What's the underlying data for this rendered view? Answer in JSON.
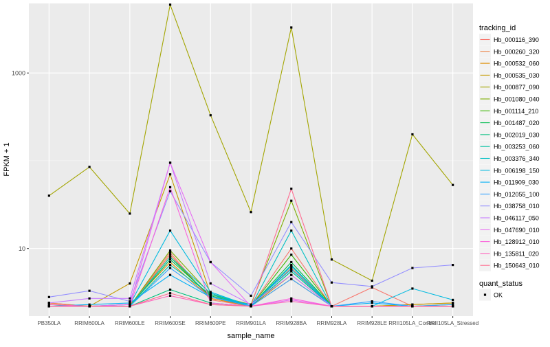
{
  "chart_data": {
    "type": "line",
    "x": [
      "PB350LA",
      "RRIM600LA",
      "RRIM600LE",
      "RRIM600SE",
      "RRIM600PE",
      "RRIM901LA",
      "RRIM928BA",
      "RRIM928LA",
      "RRIM928LE",
      "RRII105LA_Control",
      "RRII105LA_Stressed"
    ],
    "xlabel": "sample_name",
    "ylabel": "FPKM + 1",
    "yscale": "log10",
    "ylim": [
      1.7,
      6200
    ],
    "yticks": [
      10,
      1000
    ],
    "ytick_labels": [
      "10",
      "1000"
    ],
    "grid": true,
    "legend": {
      "placement": "right",
      "color_title": "tracking_id",
      "shape_title": "quant_status",
      "shape_items": [
        "OK"
      ]
    },
    "series": [
      {
        "name": "Hb_000116_390",
        "color": "#F8766D",
        "values": [
          2.4,
          2.2,
          2.2,
          9.0,
          2.6,
          2.2,
          10.0,
          2.2,
          3.6,
          2.2,
          2.2
        ]
      },
      {
        "name": "Hb_000260_320",
        "color": "#EE8043",
        "values": [
          2.4,
          2.2,
          2.2,
          8.5,
          2.7,
          2.2,
          6.0,
          2.2,
          2.2,
          2.2,
          2.2
        ]
      },
      {
        "name": "Hb_000532_060",
        "color": "#DE8C00",
        "values": [
          2.2,
          2.2,
          2.3,
          7.0,
          2.7,
          2.2,
          4.5,
          2.2,
          2.2,
          2.3,
          2.4
        ]
      },
      {
        "name": "Hb_000535_030",
        "color": "#C49A00",
        "values": [
          2.2,
          2.2,
          4.0,
          70.0,
          3.0,
          2.2,
          5.0,
          2.2,
          2.2,
          2.3,
          2.4
        ]
      },
      {
        "name": "Hb_000877_090",
        "color": "#A3A500",
        "values": [
          40.0,
          85.0,
          25.0,
          6000.0,
          330.0,
          26.0,
          3300.0,
          7.5,
          4.3,
          200.0,
          53.0
        ]
      },
      {
        "name": "Hb_001080_040",
        "color": "#7CAE00",
        "values": [
          2.3,
          2.2,
          2.2,
          9.5,
          3.0,
          2.3,
          35.0,
          2.2,
          2.2,
          2.2,
          2.3
        ]
      },
      {
        "name": "Hb_001114_210",
        "color": "#39B600",
        "values": [
          2.2,
          2.2,
          2.2,
          8.0,
          2.8,
          2.2,
          8.5,
          2.2,
          2.2,
          2.2,
          2.2
        ]
      },
      {
        "name": "Hb_001487_020",
        "color": "#00BB4E",
        "values": [
          2.2,
          2.2,
          2.2,
          7.5,
          2.9,
          2.2,
          7.0,
          2.2,
          2.2,
          2.2,
          2.2
        ]
      },
      {
        "name": "Hb_002019_030",
        "color": "#00BF7D",
        "values": [
          2.2,
          2.2,
          2.2,
          3.4,
          2.4,
          2.2,
          5.5,
          2.2,
          2.2,
          2.2,
          2.2
        ]
      },
      {
        "name": "Hb_003253_060",
        "color": "#00C1A3",
        "values": [
          2.2,
          2.2,
          2.2,
          6.5,
          3.0,
          2.2,
          6.5,
          2.2,
          2.2,
          2.2,
          2.2
        ]
      },
      {
        "name": "Hb_003376_340",
        "color": "#00BFC4",
        "values": [
          2.2,
          2.2,
          2.2,
          8.0,
          3.1,
          2.2,
          16.0,
          2.2,
          2.2,
          2.2,
          2.2
        ]
      },
      {
        "name": "Hb_006198_150",
        "color": "#00BAE0",
        "values": [
          2.2,
          2.2,
          2.3,
          16.0,
          3.2,
          2.2,
          6.3,
          2.2,
          2.2,
          3.5,
          2.6
        ]
      },
      {
        "name": "Hb_011909_030",
        "color": "#00B0F6",
        "values": [
          2.2,
          2.3,
          2.4,
          5.0,
          2.8,
          2.3,
          5.8,
          2.2,
          2.4,
          2.2,
          2.2
        ]
      },
      {
        "name": "Hb_012055_100",
        "color": "#35A2FF",
        "values": [
          2.2,
          2.2,
          2.2,
          6.0,
          2.8,
          2.2,
          4.5,
          2.2,
          2.5,
          2.2,
          2.3
        ]
      },
      {
        "name": "Hb_038758_010",
        "color": "#9590FF",
        "values": [
          2.8,
          3.3,
          2.5,
          45.0,
          7.0,
          2.9,
          20.0,
          4.1,
          3.7,
          6.0,
          6.5
        ]
      },
      {
        "name": "Hb_046117_050",
        "color": "#C77CFF",
        "values": [
          2.4,
          2.7,
          2.7,
          95.0,
          4.0,
          2.3,
          5.0,
          2.2,
          2.2,
          2.2,
          2.2
        ]
      },
      {
        "name": "Hb_047690_010",
        "color": "#E76BF3",
        "values": [
          2.2,
          2.2,
          2.3,
          95.0,
          7.0,
          2.2,
          2.6,
          2.2,
          2.2,
          2.2,
          2.2
        ]
      },
      {
        "name": "Hb_128912_010",
        "color": "#FA62DB",
        "values": [
          2.2,
          2.2,
          2.2,
          50.0,
          2.4,
          2.2,
          2.7,
          2.2,
          2.2,
          2.2,
          2.2
        ]
      },
      {
        "name": "Hb_135811_020",
        "color": "#FF62BC",
        "values": [
          2.3,
          2.2,
          2.2,
          2.9,
          2.3,
          2.2,
          2.5,
          2.2,
          2.2,
          2.2,
          2.2
        ]
      },
      {
        "name": "Hb_150643_010",
        "color": "#FF6C91",
        "values": [
          2.2,
          2.2,
          2.2,
          3.1,
          2.3,
          2.2,
          48.0,
          2.2,
          2.2,
          2.2,
          2.2
        ]
      }
    ]
  }
}
